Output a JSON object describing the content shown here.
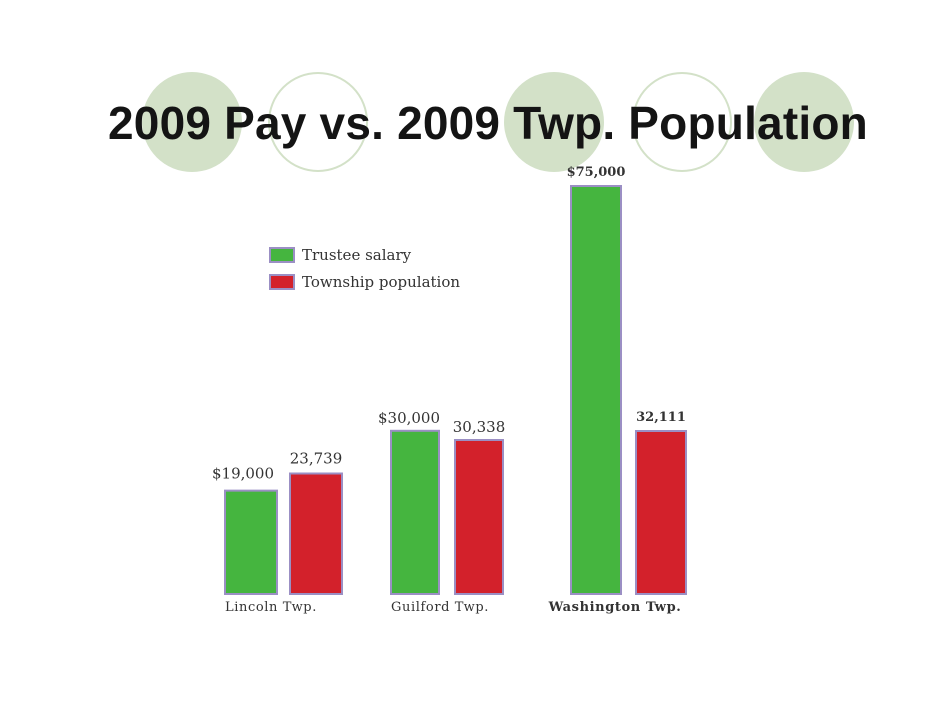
{
  "slide": {
    "title": "2009 Pay vs. 2009 Twp. Population"
  },
  "colors": {
    "salary": "#45b53f",
    "population": "#d3212b",
    "bar_border": "#9b8fc4",
    "decor": "#d3e1c8"
  },
  "legend": {
    "position": "upper-left",
    "items": [
      {
        "label": "Trustee salary",
        "color": "#45b53f"
      },
      {
        "label": "Township population",
        "color": "#d3212b"
      }
    ]
  },
  "chart_data": {
    "type": "bar",
    "title": "2009 Pay vs. 2009 Twp. Population",
    "categories": [
      "Lincoln Twp.",
      "Guilford Twp.",
      "Washington Twp."
    ],
    "series": [
      {
        "name": "Trustee salary",
        "values": [
          19000,
          30000,
          75000
        ],
        "labels": [
          "$19,000",
          "$30,000",
          "$75,000"
        ]
      },
      {
        "name": "Township population",
        "values": [
          23739,
          30338,
          32111
        ],
        "labels": [
          "23,739",
          "30,338",
          "32,111"
        ]
      }
    ],
    "grid": false,
    "axes_visible": false
  }
}
